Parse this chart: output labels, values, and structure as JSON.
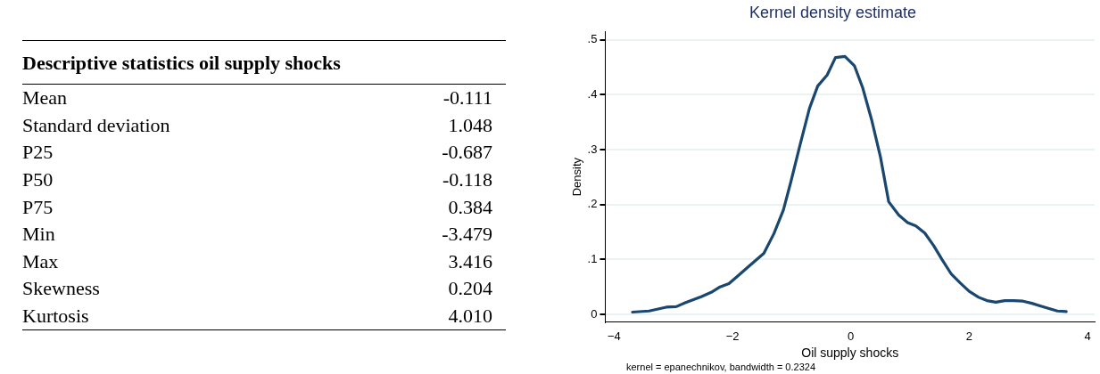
{
  "chart_data": [
    {
      "type": "other",
      "title": "Descriptive statistics oil supply shocks",
      "categories": [
        "Mean",
        "Standard deviation",
        "P25",
        "P50",
        "P75",
        "Min",
        "Max",
        "Skewness",
        "Kurtosis"
      ],
      "value_labels": [
        "-0.111",
        "1.048",
        "-0.687",
        "-0.118",
        "0.384",
        "-3.479",
        "3.416",
        "0.204",
        "4.010"
      ]
    },
    {
      "type": "line",
      "title": "Kernel density estimate",
      "xlabel": "Oil supply shocks",
      "ylabel": "Density",
      "annotations": [
        "kernel = epanechnikov, bandwidth = 0.2324"
      ],
      "x": [
        -3.69,
        -3.41,
        -3.12,
        -2.95,
        -2.8,
        -2.53,
        -2.36,
        -2.21,
        -2.06,
        -1.92,
        -1.74,
        -1.47,
        -1.3,
        -1.14,
        -1.01,
        -0.86,
        -0.7,
        -0.56,
        -0.4,
        -0.26,
        -0.1,
        0.06,
        0.2,
        0.35,
        0.5,
        0.64,
        0.81,
        0.96,
        1.1,
        1.25,
        1.4,
        1.54,
        1.7,
        1.85,
        2.0,
        2.16,
        2.3,
        2.45,
        2.6,
        2.75,
        2.91,
        3.06,
        3.21,
        3.49,
        3.64
      ],
      "series": [
        {
          "color": "#1a476f",
          "values": [
            0.004,
            0.006,
            0.013,
            0.014,
            0.021,
            0.032,
            0.04,
            0.05,
            0.056,
            0.069,
            0.086,
            0.111,
            0.147,
            0.19,
            0.243,
            0.308,
            0.375,
            0.416,
            0.436,
            0.468,
            0.47,
            0.453,
            0.413,
            0.355,
            0.287,
            0.205,
            0.181,
            0.167,
            0.161,
            0.148,
            0.125,
            0.1,
            0.073,
            0.057,
            0.042,
            0.031,
            0.025,
            0.022,
            0.025,
            0.025,
            0.024,
            0.02,
            0.015,
            0.006,
            0.005
          ]
        }
      ],
      "xlim": [
        -4.15,
        4.12
      ],
      "xticks": [
        {
          "value": -4,
          "label": "−4"
        },
        {
          "value": -2,
          "label": "−2"
        },
        0,
        2,
        4
      ],
      "ylim": [
        -0.014,
        0.515
      ],
      "yticks": [
        0,
        {
          "value": 0.1,
          "label": ".1"
        },
        {
          "value": 0.2,
          "label": ".2"
        },
        {
          "value": 0.3,
          "label": ".3"
        },
        {
          "value": 0.4,
          "label": ".4"
        },
        {
          "value": 0.5,
          "label": ".5"
        }
      ],
      "grid": "y",
      "legend": false,
      "marker": "none",
      "line_style": "solid"
    }
  ]
}
